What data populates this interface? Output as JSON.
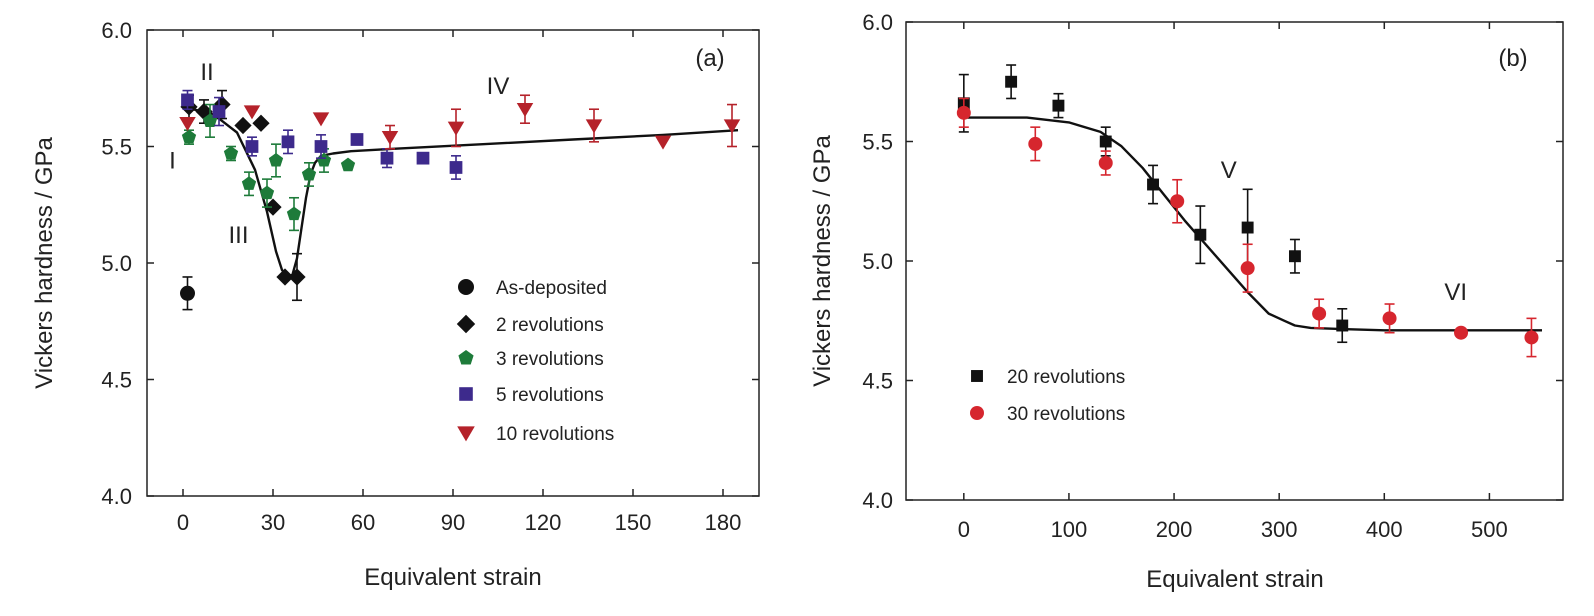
{
  "colors": {
    "black": "#111111",
    "green": "#1e7b3a",
    "purple": "#3d2a8c",
    "red": "#b5222a",
    "red_b": "#d6262e"
  },
  "chart_data": [
    {
      "type": "scatter",
      "panel_label": "(a)",
      "xlabel": "Equivalent strain",
      "ylabel": "Vickers hardness / GPa",
      "xlim": [
        -12,
        192
      ],
      "ylim": [
        4.0,
        6.0
      ],
      "xticks": [
        0,
        30,
        60,
        90,
        120,
        150,
        180
      ],
      "yticks": [
        4.0,
        4.5,
        5.0,
        5.5,
        6.0
      ],
      "ytick_labels": [
        "4.0",
        "4.5",
        "5.0",
        "5.5",
        "6.0"
      ],
      "legend_position": "lower-right",
      "annotations": [
        {
          "text": "I",
          "x": -3.5,
          "y": 5.44
        },
        {
          "text": "II",
          "x": 8,
          "y": 5.82
        },
        {
          "text": "III",
          "x": 18.5,
          "y": 5.12
        },
        {
          "text": "IV",
          "x": 105,
          "y": 5.76
        }
      ],
      "series": [
        {
          "name": "As-deposited",
          "marker": "circle",
          "color": "#111111",
          "x": [
            1.5
          ],
          "y": [
            4.87
          ],
          "err": [
            0.07
          ]
        },
        {
          "name": "2 revolutions",
          "marker": "diamond",
          "color": "#111111",
          "x": [
            2,
            7,
            13,
            20,
            26,
            30,
            34,
            38
          ],
          "y": [
            5.67,
            5.65,
            5.68,
            5.59,
            5.6,
            5.24,
            4.94,
            4.94
          ],
          "err": [
            0.05,
            0.05,
            0.06,
            0.0,
            0.0,
            0.0,
            0.0,
            0.1
          ]
        },
        {
          "name": "3 revolutions",
          "marker": "pentagon",
          "color": "#1e7b3a",
          "x": [
            2,
            9,
            16,
            22,
            28,
            31,
            37,
            42,
            47,
            55
          ],
          "y": [
            5.54,
            5.61,
            5.47,
            5.34,
            5.3,
            5.44,
            5.21,
            5.38,
            5.44,
            5.42
          ],
          "err": [
            0.03,
            0.07,
            0.03,
            0.05,
            0.06,
            0.07,
            0.07,
            0.05,
            0.05,
            0.0
          ]
        },
        {
          "name": "5 revolutions",
          "marker": "square",
          "color": "#3d2a8c",
          "x": [
            1.5,
            12,
            23,
            35,
            46,
            58,
            68,
            80,
            91
          ],
          "y": [
            5.7,
            5.65,
            5.5,
            5.52,
            5.5,
            5.53,
            5.45,
            5.45,
            5.41
          ],
          "err": [
            0.04,
            0.06,
            0.04,
            0.05,
            0.05,
            0.0,
            0.04,
            0.0,
            0.05
          ]
        },
        {
          "name": "10 revolutions",
          "marker": "triangle-down",
          "color": "#b5222a",
          "x": [
            1.5,
            23,
            46,
            69,
            91,
            114,
            137,
            160,
            183
          ],
          "y": [
            5.6,
            5.65,
            5.62,
            5.54,
            5.58,
            5.66,
            5.59,
            5.52,
            5.59
          ],
          "err": [
            0.0,
            0.0,
            0.0,
            0.05,
            0.08,
            0.06,
            0.07,
            0.0,
            0.09
          ]
        }
      ],
      "fit_line": {
        "x": [
          0,
          10,
          18,
          24,
          28,
          31,
          33,
          35,
          36.5,
          38,
          39.5,
          41,
          42.5,
          44,
          46,
          50,
          56,
          70,
          100,
          130,
          160,
          185
        ],
        "y": [
          5.67,
          5.64,
          5.56,
          5.4,
          5.22,
          5.05,
          4.97,
          4.94,
          4.95,
          5.02,
          5.15,
          5.28,
          5.38,
          5.43,
          5.46,
          5.47,
          5.48,
          5.49,
          5.51,
          5.53,
          5.55,
          5.57
        ]
      },
      "legend": [
        {
          "label": "As-deposited",
          "marker": "circle",
          "color": "#111111"
        },
        {
          "label": "2 revolutions",
          "marker": "diamond",
          "color": "#111111"
        },
        {
          "label": "3 revolutions",
          "marker": "pentagon",
          "color": "#1e7b3a"
        },
        {
          "label": "5 revolutions",
          "marker": "square",
          "color": "#3d2a8c"
        },
        {
          "label": "10 revolutions",
          "marker": "triangle-down",
          "color": "#b5222a"
        }
      ]
    },
    {
      "type": "scatter",
      "panel_label": "(b)",
      "xlabel": "Equivalent strain",
      "ylabel": "Vickers hardness / GPa",
      "xlim": [
        -55,
        570
      ],
      "ylim": [
        4.0,
        6.0
      ],
      "xticks": [
        0,
        100,
        200,
        300,
        400,
        500
      ],
      "yticks": [
        4.0,
        4.5,
        5.0,
        5.5,
        6.0
      ],
      "ytick_labels": [
        "4.0",
        "4.5",
        "5.0",
        "5.5",
        "6.0"
      ],
      "legend_position": "lower-left",
      "annotations": [
        {
          "text": "V",
          "x": 252,
          "y": 5.38
        },
        {
          "text": "VI",
          "x": 468,
          "y": 4.87
        }
      ],
      "series": [
        {
          "name": "20 revolutions",
          "marker": "square",
          "color": "#111111",
          "x": [
            0,
            45,
            90,
            135,
            180,
            225,
            270,
            315,
            360
          ],
          "y": [
            5.66,
            5.75,
            5.65,
            5.5,
            5.32,
            5.11,
            5.14,
            5.02,
            4.73
          ],
          "err": [
            0.12,
            0.07,
            0.05,
            0.06,
            0.08,
            0.12,
            0.16,
            0.07,
            0.07
          ]
        },
        {
          "name": "30 revolutions",
          "marker": "circle",
          "color": "#d6262e",
          "x": [
            0,
            68,
            135,
            203,
            270,
            338,
            405,
            473,
            540
          ],
          "y": [
            5.62,
            5.49,
            5.41,
            5.25,
            4.97,
            4.78,
            4.76,
            4.7,
            4.68
          ],
          "err": [
            0.06,
            0.07,
            0.05,
            0.09,
            0.1,
            0.06,
            0.06,
            0.0,
            0.08
          ]
        }
      ],
      "fit_line": {
        "x": [
          0,
          60,
          100,
          130,
          150,
          170,
          190,
          210,
          230,
          250,
          270,
          290,
          305,
          315,
          330,
          360,
          400,
          450,
          500,
          550
        ],
        "y": [
          5.6,
          5.6,
          5.58,
          5.54,
          5.48,
          5.39,
          5.28,
          5.17,
          5.07,
          4.97,
          4.87,
          4.78,
          4.75,
          4.73,
          4.72,
          4.715,
          4.71,
          4.71,
          4.71,
          4.71
        ]
      },
      "legend": [
        {
          "label": "20 revolutions",
          "marker": "square",
          "color": "#111111"
        },
        {
          "label": "30 revolutions",
          "marker": "circle",
          "color": "#d6262e"
        }
      ]
    }
  ]
}
